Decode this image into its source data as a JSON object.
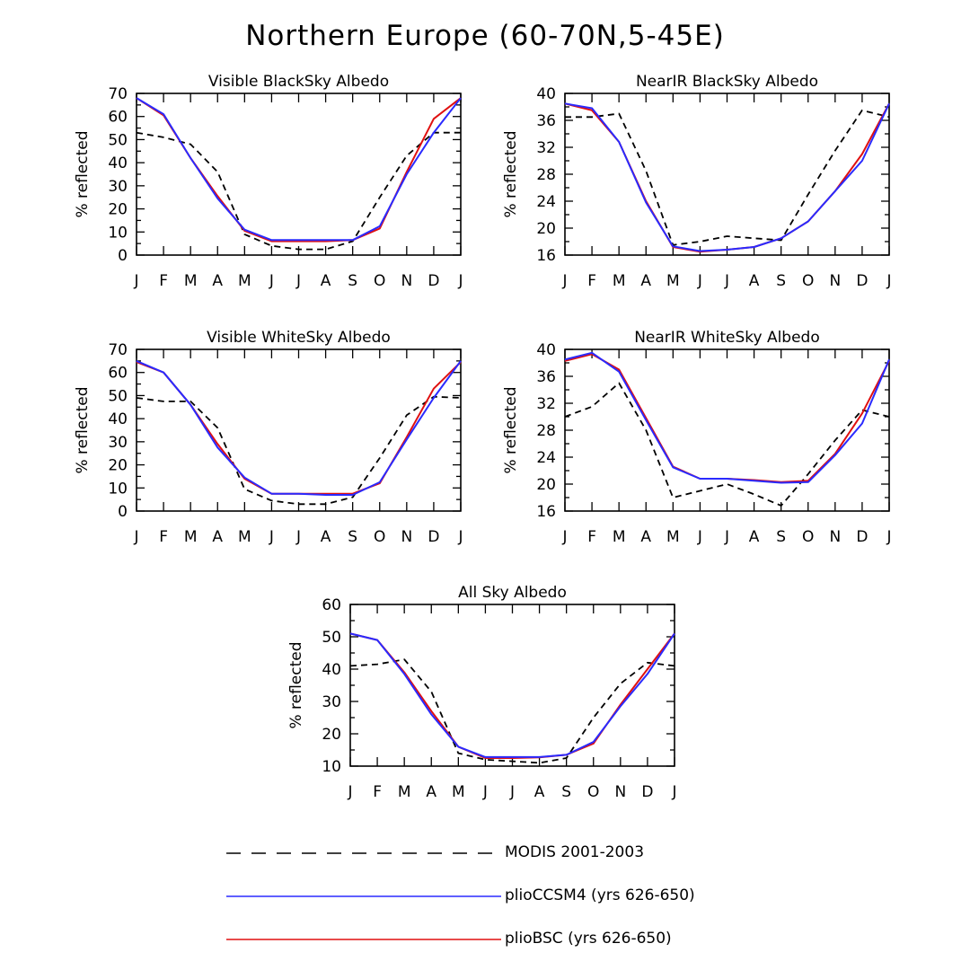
{
  "page_title": "Northern Europe (60-70N,5-45E)",
  "series_styles": {
    "modis": {
      "color": "#000000",
      "dash": "dashed"
    },
    "ccsm4": {
      "color": "#2a2aff",
      "dash": "solid"
    },
    "bsc": {
      "color": "#e01010",
      "dash": "solid"
    }
  },
  "legend": {
    "items": [
      {
        "key": "modis",
        "label": "MODIS 2001-2003"
      },
      {
        "key": "ccsm4",
        "label": "plioCCSM4 (yrs 626-650)"
      },
      {
        "key": "bsc",
        "label": "plioBSC (yrs 626-650)"
      }
    ]
  },
  "chart_data": [
    {
      "type": "line",
      "title": "Visible BlackSky Albedo",
      "ylabel": "% reflected",
      "xlabel": "",
      "categories": [
        "J",
        "F",
        "M",
        "A",
        "M",
        "J",
        "J",
        "A",
        "S",
        "O",
        "N",
        "D",
        "J"
      ],
      "ylim": [
        0,
        70
      ],
      "yticks": [
        0,
        10,
        20,
        30,
        40,
        50,
        60,
        70
      ],
      "series": [
        {
          "key": "modis",
          "name": "MODIS 2001-2003",
          "values": [
            53,
            51,
            48,
            36,
            9,
            4,
            2.5,
            2.5,
            6,
            25,
            43,
            53,
            53
          ]
        },
        {
          "key": "bsc",
          "name": "plioBSC (yrs 626-650)",
          "values": [
            68,
            60.5,
            42,
            25.5,
            10.5,
            6,
            6,
            6,
            6.5,
            11.5,
            36,
            59,
            68
          ]
        },
        {
          "key": "ccsm4",
          "name": "plioCCSM4 (yrs 626-650)",
          "values": [
            68,
            61,
            42,
            24.5,
            11,
            6.5,
            6.5,
            6.5,
            6.5,
            12.5,
            35,
            53,
            68
          ]
        }
      ]
    },
    {
      "type": "line",
      "title": "NearIR BlackSky Albedo",
      "ylabel": "% reflected",
      "xlabel": "",
      "categories": [
        "J",
        "F",
        "M",
        "A",
        "M",
        "J",
        "J",
        "A",
        "S",
        "O",
        "N",
        "D",
        "J"
      ],
      "ylim": [
        16,
        40
      ],
      "yticks": [
        16,
        20,
        24,
        28,
        32,
        36,
        40
      ],
      "series": [
        {
          "key": "modis",
          "name": "MODIS 2001-2003",
          "values": [
            36.5,
            36.5,
            37,
            28.5,
            17.5,
            18,
            18.8,
            18.5,
            18.2,
            25,
            31.5,
            37.5,
            36.5
          ]
        },
        {
          "key": "bsc",
          "name": "plioBSC (yrs 626-650)",
          "values": [
            38.5,
            37.5,
            32.8,
            24,
            17.2,
            16.5,
            16.8,
            17.2,
            18.5,
            21,
            25.5,
            31,
            38.5
          ]
        },
        {
          "key": "ccsm4",
          "name": "plioCCSM4 (yrs 626-650)",
          "values": [
            38.5,
            37.8,
            32.8,
            23.8,
            17.3,
            16.6,
            16.8,
            17.2,
            18.5,
            21,
            25.5,
            30,
            38.5
          ]
        }
      ]
    },
    {
      "type": "line",
      "title": "Visible WhiteSky Albedo",
      "ylabel": "% reflected",
      "xlabel": "",
      "categories": [
        "J",
        "F",
        "M",
        "A",
        "M",
        "J",
        "J",
        "A",
        "S",
        "O",
        "N",
        "D",
        "J"
      ],
      "ylim": [
        0,
        70
      ],
      "yticks": [
        0,
        10,
        20,
        30,
        40,
        50,
        60,
        70
      ],
      "series": [
        {
          "key": "modis",
          "name": "MODIS 2001-2003",
          "values": [
            49,
            47.5,
            47.5,
            36,
            9.5,
            4.5,
            3,
            3,
            6,
            23,
            41.5,
            49.5,
            49
          ]
        },
        {
          "key": "bsc",
          "name": "plioBSC (yrs 626-650)",
          "values": [
            64.5,
            60,
            46,
            29,
            14,
            7.5,
            7.5,
            7.5,
            7.5,
            12,
            32,
            53,
            64.5
          ]
        },
        {
          "key": "ccsm4",
          "name": "plioCCSM4 (yrs 626-650)",
          "values": [
            65,
            60,
            46,
            27.5,
            14.5,
            7.5,
            7.5,
            7,
            7,
            12.5,
            31,
            49,
            65
          ]
        }
      ]
    },
    {
      "type": "line",
      "title": "NearIR WhiteSky Albedo",
      "ylabel": "% reflected",
      "xlabel": "",
      "categories": [
        "J",
        "F",
        "M",
        "A",
        "M",
        "J",
        "J",
        "A",
        "S",
        "O",
        "N",
        "D",
        "J"
      ],
      "ylim": [
        16,
        40
      ],
      "yticks": [
        16,
        20,
        24,
        28,
        32,
        36,
        40
      ],
      "series": [
        {
          "key": "modis",
          "name": "MODIS 2001-2003",
          "values": [
            30,
            31.5,
            35,
            28,
            18,
            19,
            20,
            18.5,
            16.8,
            21.5,
            26.5,
            31,
            30
          ]
        },
        {
          "key": "bsc",
          "name": "plioBSC (yrs 626-650)",
          "values": [
            38.3,
            39.3,
            37,
            29.8,
            22.6,
            20.8,
            20.8,
            20.6,
            20.3,
            20.5,
            24.5,
            30.5,
            38.3
          ]
        },
        {
          "key": "ccsm4",
          "name": "plioCCSM4 (yrs 626-650)",
          "values": [
            38.5,
            39.5,
            36.7,
            29.5,
            22.5,
            20.8,
            20.8,
            20.5,
            20.2,
            20.3,
            24.3,
            29,
            38.5
          ]
        }
      ]
    },
    {
      "type": "line",
      "title": "All Sky Albedo",
      "ylabel": "% reflected",
      "xlabel": "",
      "categories": [
        "J",
        "F",
        "M",
        "A",
        "M",
        "J",
        "J",
        "A",
        "S",
        "O",
        "N",
        "D",
        "J"
      ],
      "ylim": [
        10,
        60
      ],
      "yticks": [
        10,
        20,
        30,
        40,
        50,
        60
      ],
      "series": [
        {
          "key": "modis",
          "name": "MODIS 2001-2003",
          "values": [
            41,
            41.5,
            43,
            33,
            14,
            12,
            11.5,
            11,
            12.5,
            25,
            35.5,
            42,
            41
          ]
        },
        {
          "key": "bsc",
          "name": "plioBSC (yrs 626-650)",
          "values": [
            51,
            49,
            39,
            27,
            16,
            12.5,
            12.5,
            12.7,
            13.5,
            17,
            29,
            40,
            51
          ]
        },
        {
          "key": "ccsm4",
          "name": "plioCCSM4 (yrs 626-650)",
          "values": [
            51,
            49,
            38.5,
            26,
            16,
            12.8,
            12.8,
            12.8,
            13.5,
            17.5,
            28.5,
            38.5,
            51
          ]
        }
      ]
    }
  ]
}
